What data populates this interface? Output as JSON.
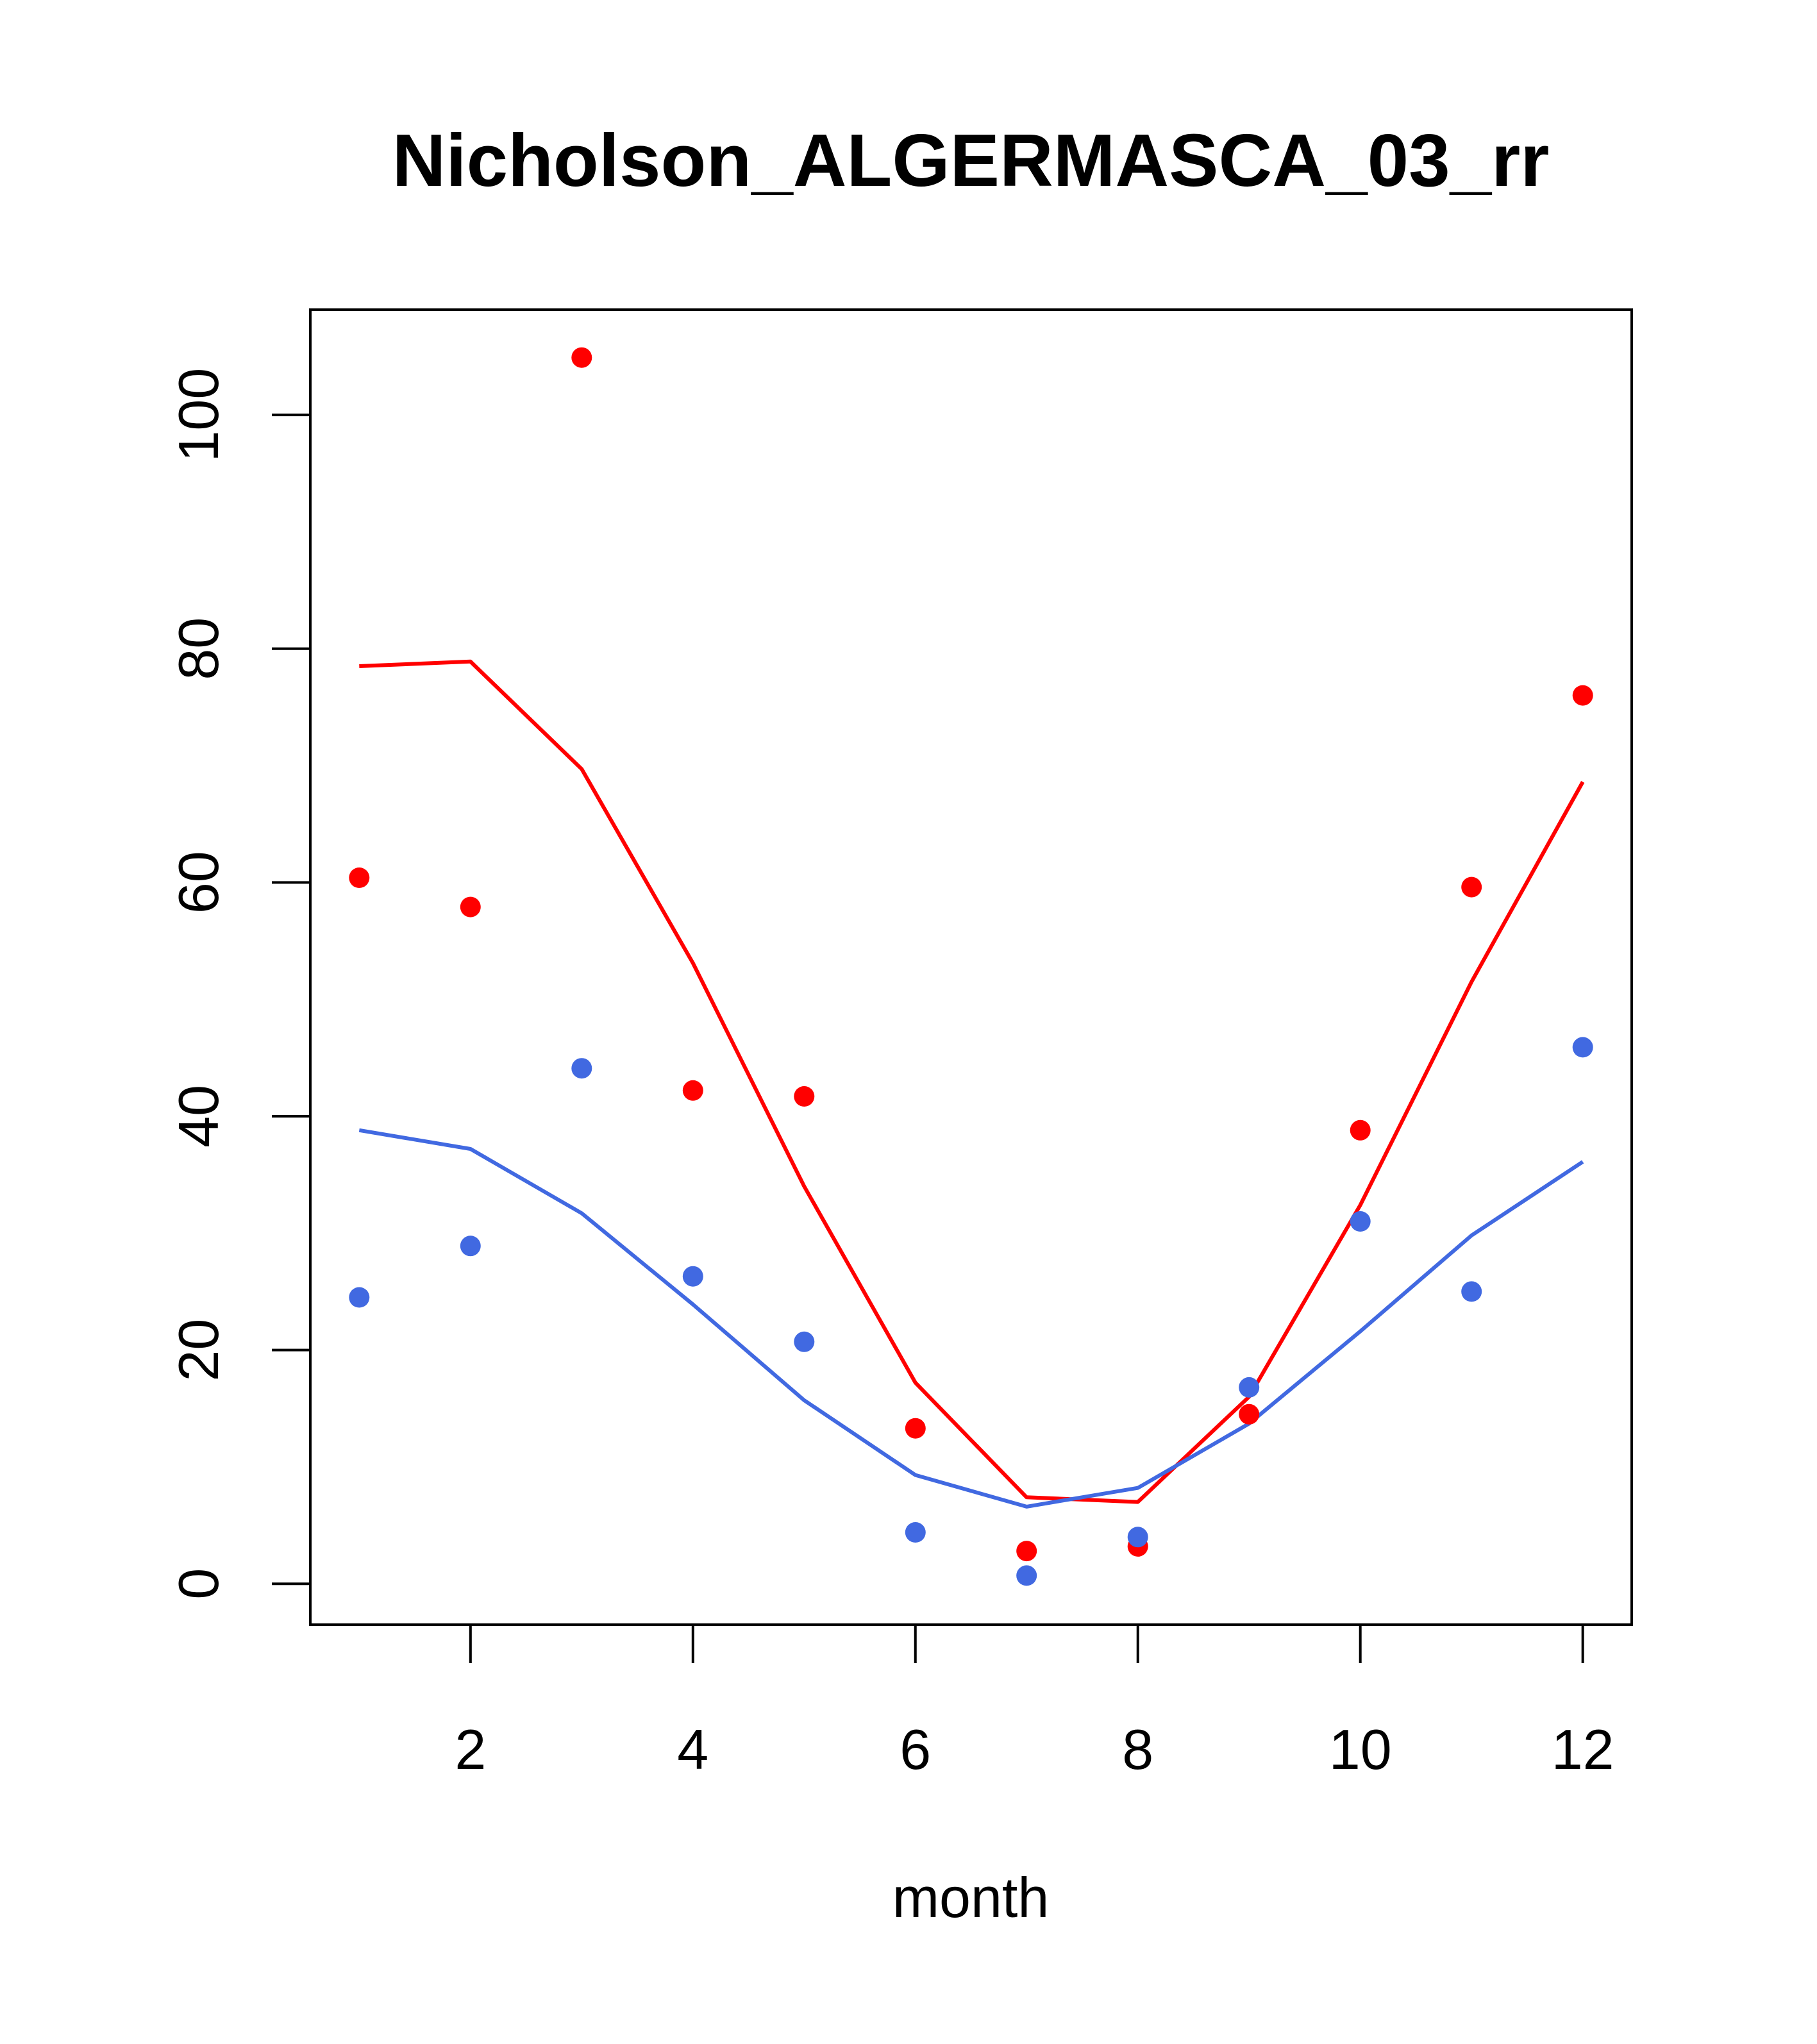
{
  "chart_data": {
    "type": "line",
    "title": "Nicholson_ALGERMASCA_03_rr",
    "xlabel": "month",
    "ylabel": "",
    "xlim": [
      0.56,
      12.44
    ],
    "ylim": [
      -3.5,
      109
    ],
    "x_ticks": [
      2,
      4,
      6,
      8,
      10,
      12
    ],
    "y_ticks": [
      0,
      20,
      40,
      60,
      80,
      100
    ],
    "grid": false,
    "series": [
      {
        "color": "#ff0000",
        "style": "line",
        "x": [
          1,
          2,
          3,
          4,
          5,
          6,
          7,
          8,
          9,
          10,
          11,
          12
        ],
        "values": [
          78.5,
          78.9,
          69.7,
          53.1,
          34.0,
          17.2,
          7.4,
          7.0,
          16.0,
          32.4,
          51.5,
          68.6
        ]
      },
      {
        "color": "#ff0000",
        "style": "points",
        "x": [
          1,
          2,
          3,
          4,
          5,
          6,
          7,
          8,
          9,
          10,
          11,
          12
        ],
        "values": [
          60.4,
          57.9,
          104.9,
          42.2,
          41.7,
          13.3,
          2.8,
          3.2,
          14.5,
          38.8,
          59.6,
          76.0
        ]
      },
      {
        "color": "#4169e1",
        "style": "line",
        "x": [
          1,
          2,
          3,
          4,
          5,
          6,
          7,
          8,
          9,
          10,
          11,
          12
        ],
        "values": [
          38.8,
          37.2,
          31.7,
          23.9,
          15.7,
          9.3,
          6.6,
          8.2,
          13.7,
          21.6,
          29.8,
          36.1
        ]
      },
      {
        "color": "#4169e1",
        "style": "points",
        "x": [
          1,
          2,
          3,
          4,
          5,
          6,
          7,
          8,
          9,
          10,
          11,
          12
        ],
        "values": [
          24.5,
          28.9,
          44.1,
          26.3,
          20.7,
          4.4,
          0.7,
          4.0,
          16.8,
          31.0,
          25.0,
          45.9
        ]
      }
    ]
  }
}
